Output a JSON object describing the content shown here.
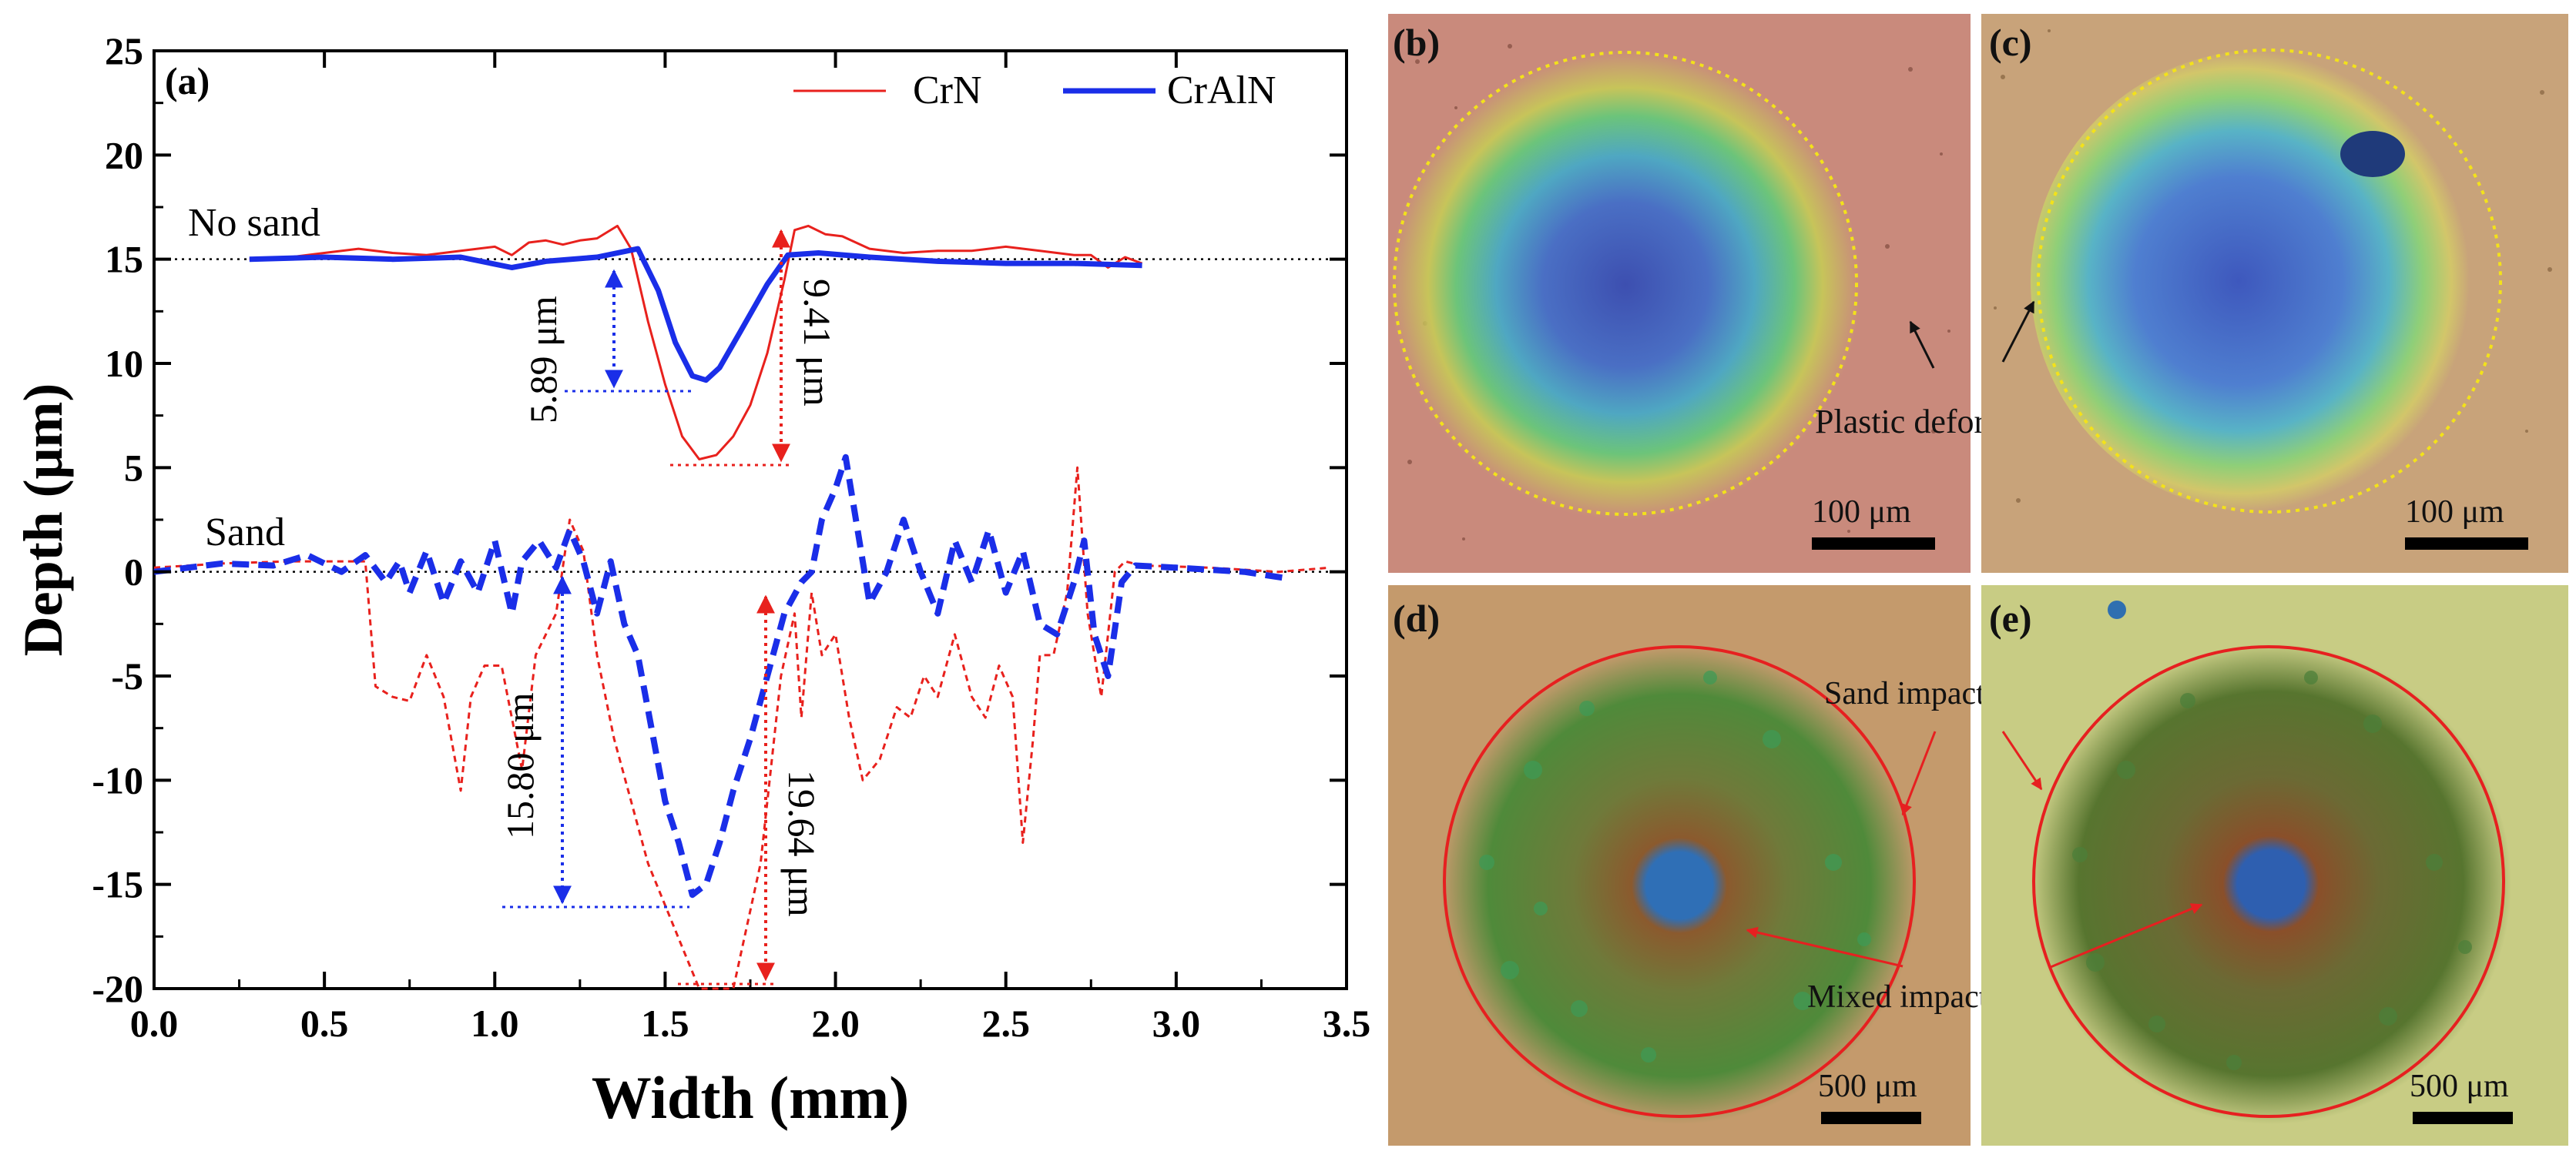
{
  "chart_data": {
    "type": "line",
    "panel_label": "(a)",
    "xlabel": "Width (mm)",
    "ylabel": "Depth (μm)",
    "xlim": [
      0.0,
      3.5
    ],
    "ylim": [
      -20,
      25
    ],
    "x_ticks": [
      "0.0",
      "0.5",
      "1.0",
      "1.5",
      "2.0",
      "2.5",
      "3.0",
      "3.5"
    ],
    "y_ticks": [
      "25",
      "20",
      "15",
      "10",
      "5",
      "0",
      "-5",
      "-10",
      "-15",
      "-20"
    ],
    "legend": [
      "CrN",
      "CrAlN"
    ],
    "group_labels": [
      "No sand",
      "Sand"
    ],
    "baselines": [
      15,
      0
    ],
    "series": [
      {
        "name": "CrN",
        "condition": "No sand",
        "color": "#e8211d",
        "style": "solid",
        "points": [
          [
            0.28,
            15
          ],
          [
            0.4,
            15.1
          ],
          [
            0.5,
            15.3
          ],
          [
            0.6,
            15.5
          ],
          [
            0.7,
            15.3
          ],
          [
            0.8,
            15.2
          ],
          [
            0.9,
            15.4
          ],
          [
            1.0,
            15.6
          ],
          [
            1.05,
            15.2
          ],
          [
            1.1,
            15.8
          ],
          [
            1.15,
            15.9
          ],
          [
            1.2,
            15.7
          ],
          [
            1.25,
            15.9
          ],
          [
            1.3,
            16.0
          ],
          [
            1.36,
            16.6
          ],
          [
            1.4,
            15.5
          ],
          [
            1.45,
            12
          ],
          [
            1.5,
            9
          ],
          [
            1.55,
            6.5
          ],
          [
            1.6,
            5.4
          ],
          [
            1.65,
            5.6
          ],
          [
            1.7,
            6.5
          ],
          [
            1.75,
            8
          ],
          [
            1.8,
            10.5
          ],
          [
            1.85,
            14
          ],
          [
            1.88,
            16.4
          ],
          [
            1.92,
            16.6
          ],
          [
            1.97,
            16.2
          ],
          [
            2.02,
            16.1
          ],
          [
            2.1,
            15.5
          ],
          [
            2.2,
            15.3
          ],
          [
            2.3,
            15.4
          ],
          [
            2.4,
            15.4
          ],
          [
            2.5,
            15.6
          ],
          [
            2.6,
            15.4
          ],
          [
            2.7,
            15.2
          ],
          [
            2.75,
            15.2
          ],
          [
            2.8,
            14.6
          ],
          [
            2.85,
            15.1
          ],
          [
            2.9,
            14.8
          ]
        ]
      },
      {
        "name": "CrAlN",
        "condition": "No sand",
        "color": "#1a2ee8",
        "style": "solid",
        "points": [
          [
            0.28,
            15
          ],
          [
            0.5,
            15.1
          ],
          [
            0.7,
            15
          ],
          [
            0.9,
            15.1
          ],
          [
            1.05,
            14.6
          ],
          [
            1.15,
            14.9
          ],
          [
            1.3,
            15.1
          ],
          [
            1.42,
            15.5
          ],
          [
            1.48,
            13.5
          ],
          [
            1.53,
            11
          ],
          [
            1.58,
            9.4
          ],
          [
            1.62,
            9.2
          ],
          [
            1.66,
            9.8
          ],
          [
            1.72,
            11.5
          ],
          [
            1.8,
            13.8
          ],
          [
            1.86,
            15.2
          ],
          [
            1.95,
            15.3
          ],
          [
            2.1,
            15.1
          ],
          [
            2.3,
            14.9
          ],
          [
            2.5,
            14.8
          ],
          [
            2.7,
            14.8
          ],
          [
            2.9,
            14.7
          ]
        ]
      },
      {
        "name": "CrN",
        "condition": "Sand",
        "color": "#e8211d",
        "style": "dashed",
        "points": [
          [
            0.0,
            0.2
          ],
          [
            0.2,
            0.4
          ],
          [
            0.4,
            0.5
          ],
          [
            0.55,
            0.5
          ],
          [
            0.62,
            0.5
          ],
          [
            0.65,
            -5.5
          ],
          [
            0.7,
            -6
          ],
          [
            0.75,
            -6.2
          ],
          [
            0.8,
            -4
          ],
          [
            0.85,
            -6
          ],
          [
            0.9,
            -10.5
          ],
          [
            0.93,
            -6
          ],
          [
            0.97,
            -4.5
          ],
          [
            1.02,
            -4.5
          ],
          [
            1.08,
            -9.5
          ],
          [
            1.12,
            -4
          ],
          [
            1.18,
            -2
          ],
          [
            1.22,
            2.5
          ],
          [
            1.26,
            1
          ],
          [
            1.3,
            -4
          ],
          [
            1.35,
            -8
          ],
          [
            1.4,
            -11
          ],
          [
            1.45,
            -14
          ],
          [
            1.5,
            -16
          ],
          [
            1.55,
            -18
          ],
          [
            1.6,
            -20
          ],
          [
            1.7,
            -20
          ],
          [
            1.78,
            -14
          ],
          [
            1.84,
            -5
          ],
          [
            1.88,
            -2
          ],
          [
            1.9,
            -7
          ],
          [
            1.93,
            -1
          ],
          [
            1.96,
            -4
          ],
          [
            2.0,
            -3
          ],
          [
            2.04,
            -7
          ],
          [
            2.08,
            -10
          ],
          [
            2.13,
            -9
          ],
          [
            2.18,
            -6.5
          ],
          [
            2.22,
            -7
          ],
          [
            2.26,
            -5
          ],
          [
            2.3,
            -6
          ],
          [
            2.35,
            -3
          ],
          [
            2.4,
            -6
          ],
          [
            2.44,
            -7
          ],
          [
            2.48,
            -4.5
          ],
          [
            2.52,
            -6
          ],
          [
            2.55,
            -13
          ],
          [
            2.58,
            -8
          ],
          [
            2.6,
            -4
          ],
          [
            2.64,
            -4
          ],
          [
            2.68,
            -1
          ],
          [
            2.71,
            5
          ],
          [
            2.74,
            -2
          ],
          [
            2.78,
            -6
          ],
          [
            2.82,
            0
          ],
          [
            2.85,
            0.5
          ],
          [
            2.9,
            0.3
          ],
          [
            3.1,
            0.2
          ],
          [
            3.3,
            0
          ],
          [
            3.45,
            0.2
          ]
        ]
      },
      {
        "name": "CrAlN",
        "condition": "Sand",
        "color": "#1a2ee8",
        "style": "dashed",
        "points": [
          [
            0.0,
            0
          ],
          [
            0.2,
            0.4
          ],
          [
            0.35,
            0.3
          ],
          [
            0.45,
            0.8
          ],
          [
            0.55,
            0
          ],
          [
            0.62,
            0.8
          ],
          [
            0.68,
            -0.5
          ],
          [
            0.72,
            0.5
          ],
          [
            0.75,
            -1
          ],
          [
            0.8,
            1
          ],
          [
            0.85,
            -1.5
          ],
          [
            0.9,
            0.5
          ],
          [
            0.95,
            -1
          ],
          [
            1.0,
            1.5
          ],
          [
            1.05,
            -2
          ],
          [
            1.08,
            0.5
          ],
          [
            1.13,
            1.5
          ],
          [
            1.18,
            0.2
          ],
          [
            1.22,
            2
          ],
          [
            1.26,
            0.5
          ],
          [
            1.3,
            -2
          ],
          [
            1.34,
            0.5
          ],
          [
            1.38,
            -2.5
          ],
          [
            1.42,
            -4
          ],
          [
            1.46,
            -7.5
          ],
          [
            1.5,
            -11
          ],
          [
            1.54,
            -13
          ],
          [
            1.58,
            -15.5
          ],
          [
            1.62,
            -15
          ],
          [
            1.66,
            -13
          ],
          [
            1.7,
            -10.5
          ],
          [
            1.75,
            -8
          ],
          [
            1.8,
            -5
          ],
          [
            1.85,
            -2
          ],
          [
            1.9,
            -0.5
          ],
          [
            1.93,
            0
          ],
          [
            1.96,
            2.5
          ],
          [
            2.0,
            4
          ],
          [
            2.03,
            5.5
          ],
          [
            2.06,
            2.5
          ],
          [
            2.1,
            -1.5
          ],
          [
            2.15,
            0
          ],
          [
            2.2,
            2.5
          ],
          [
            2.25,
            0
          ],
          [
            2.3,
            -2
          ],
          [
            2.35,
            1.5
          ],
          [
            2.4,
            -0.5
          ],
          [
            2.45,
            2
          ],
          [
            2.5,
            -1
          ],
          [
            2.55,
            1
          ],
          [
            2.6,
            -2.5
          ],
          [
            2.65,
            -3
          ],
          [
            2.7,
            -0.5
          ],
          [
            2.73,
            1.5
          ],
          [
            2.76,
            -3
          ],
          [
            2.8,
            -5
          ],
          [
            2.84,
            -0.5
          ],
          [
            2.88,
            0.3
          ],
          [
            3.0,
            0.2
          ],
          [
            3.2,
            0
          ],
          [
            3.32,
            -0.3
          ]
        ]
      }
    ],
    "annotations": [
      {
        "text": "5.89 μm",
        "color": "#1a2ee8"
      },
      {
        "text": "9.41 μm",
        "color": "#e8211d"
      },
      {
        "text": "15.80 μm",
        "color": "#1a2ee8"
      },
      {
        "text": "19.64 μm",
        "color": "#e8211d"
      }
    ]
  },
  "photos": {
    "b": {
      "label": "(b)",
      "scale": "100 μm",
      "annotation": "Plastic deformation"
    },
    "c": {
      "label": "(c)",
      "scale": "100 μm"
    },
    "d": {
      "label": "(d)",
      "scale": "500 μm",
      "annotation_top": "Sand impact zone",
      "annotation_mid": "Mixed impact zone"
    },
    "e": {
      "label": "(e)",
      "scale": "500 μm"
    }
  },
  "colors": {
    "crn": "#e8211d",
    "craln": "#1a2ee8",
    "circle_yellow": "#f3e21a",
    "circle_red": "#e62020"
  }
}
